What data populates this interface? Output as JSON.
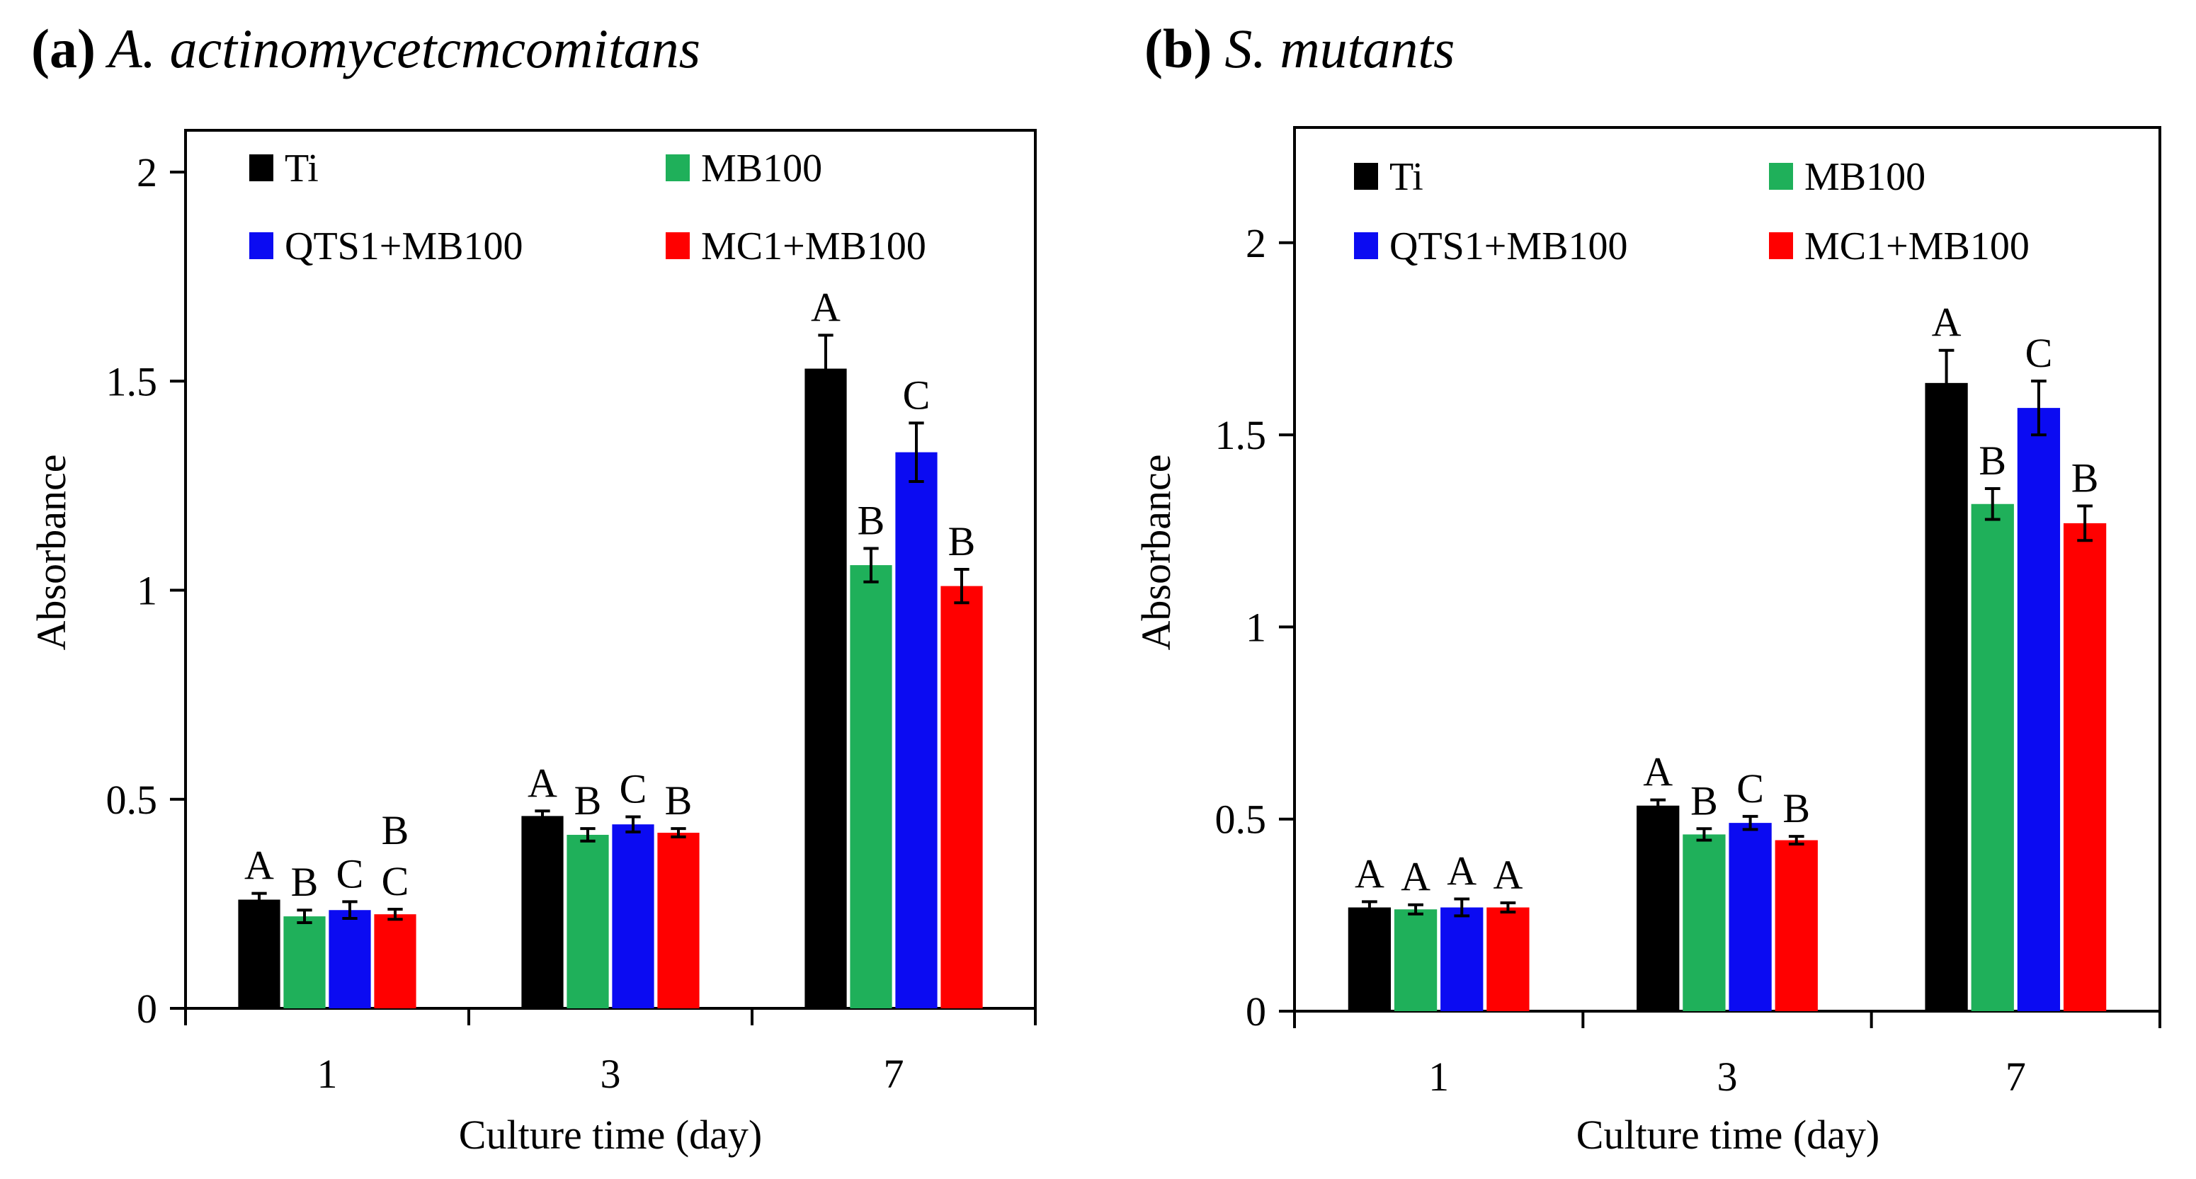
{
  "chart_data": [
    {
      "type": "bar",
      "panel_label": "(a)",
      "title": "A. actinomycetcmcomitans",
      "xlabel": "Culture time (day)",
      "ylabel": "Absorbance",
      "categories": [
        "1",
        "3",
        "7"
      ],
      "ylim": [
        0,
        2.1
      ],
      "yticks": [
        0,
        0.5,
        1,
        1.5,
        2
      ],
      "ytick_labels": [
        "0",
        "0.5",
        "1",
        "1.5",
        "2"
      ],
      "series": [
        {
          "name": "Ti",
          "color": "#000000",
          "values": [
            0.26,
            0.46,
            1.53
          ],
          "errors": [
            0.015,
            0.012,
            0.08
          ],
          "labels": [
            "A",
            "A",
            "A"
          ]
        },
        {
          "name": "MB100",
          "color": "#1fb05a",
          "values": [
            0.22,
            0.415,
            1.06
          ],
          "errors": [
            0.015,
            0.015,
            0.04
          ],
          "labels": [
            "B",
            "B",
            "B"
          ]
        },
        {
          "name": "QTS1+MB100",
          "color": "#0b0bf2",
          "values": [
            0.235,
            0.44,
            1.33
          ],
          "errors": [
            0.02,
            0.018,
            0.07
          ],
          "labels": [
            "C",
            "C",
            "C"
          ]
        },
        {
          "name": "MC1+MB100",
          "color": "#ff0000",
          "values": [
            0.225,
            0.42,
            1.01
          ],
          "errors": [
            0.012,
            0.01,
            0.04
          ],
          "labels": [
            "B\nC",
            "B",
            "B"
          ]
        }
      ]
    },
    {
      "type": "bar",
      "panel_label": "(b)",
      "title": "S. mutants",
      "xlabel": "Culture time (day)",
      "ylabel": "Absorbance",
      "categories": [
        "1",
        "3",
        "7"
      ],
      "ylim": [
        0,
        2.3
      ],
      "yticks": [
        0,
        0.5,
        1,
        1.5,
        2
      ],
      "ytick_labels": [
        "0",
        "0.5",
        "1",
        "1.5",
        "2"
      ],
      "series": [
        {
          "name": "Ti",
          "color": "#000000",
          "values": [
            0.27,
            0.535,
            1.635
          ],
          "errors": [
            0.015,
            0.015,
            0.085
          ],
          "labels": [
            "A",
            "A",
            "A"
          ]
        },
        {
          "name": "MB100",
          "color": "#1fb05a",
          "values": [
            0.265,
            0.46,
            1.32
          ],
          "errors": [
            0.012,
            0.015,
            0.04
          ],
          "labels": [
            "A",
            "B",
            "B"
          ]
        },
        {
          "name": "QTS1+MB100",
          "color": "#0b0bf2",
          "values": [
            0.27,
            0.49,
            1.57
          ],
          "errors": [
            0.022,
            0.017,
            0.07
          ],
          "labels": [
            "A",
            "C",
            "C"
          ]
        },
        {
          "name": "MC1+MB100",
          "color": "#ff0000",
          "values": [
            0.27,
            0.445,
            1.27
          ],
          "errors": [
            0.012,
            0.01,
            0.045
          ],
          "labels": [
            "A",
            "B",
            "B"
          ]
        }
      ]
    }
  ]
}
